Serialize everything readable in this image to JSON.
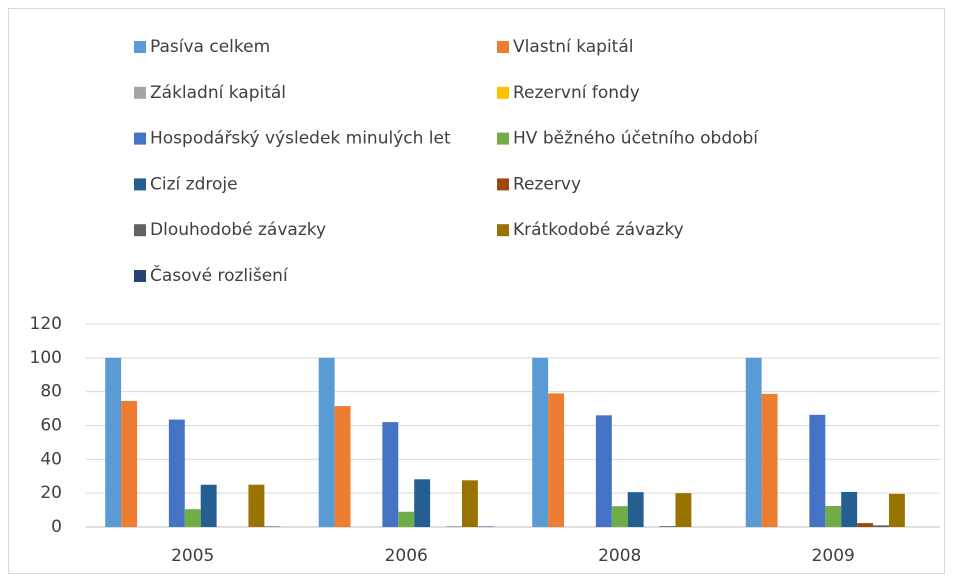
{
  "chart_data": {
    "type": "bar",
    "categories": [
      "2005",
      "2006",
      "2008",
      "2009"
    ],
    "series": [
      {
        "name": "Pasíva celkem",
        "color": "#5b9bd5",
        "values": [
          100,
          100,
          100,
          100
        ]
      },
      {
        "name": "Vlastní kapitál",
        "color": "#ed7d31",
        "values": [
          74.5,
          71.5,
          79,
          78.7
        ]
      },
      {
        "name": "Základní kapitál",
        "color": "#a5a5a5",
        "values": [
          0,
          0,
          0,
          0
        ]
      },
      {
        "name": "Rezervní fondy",
        "color": "#ffc000",
        "values": [
          0,
          0,
          0,
          0
        ]
      },
      {
        "name": "Hospodářský výsledek minulých let",
        "color": "#4472c4",
        "values": [
          63.5,
          62,
          66,
          66.3
        ]
      },
      {
        "name": "HV běžného účetního období",
        "color": "#70ad47",
        "values": [
          10.5,
          9,
          12.3,
          12.4
        ]
      },
      {
        "name": "Cizí zdroje",
        "color": "#255e91",
        "values": [
          25,
          28.2,
          20.6,
          20.7
        ]
      },
      {
        "name": "Rezervy",
        "color": "#9e480e",
        "values": [
          0,
          0,
          0,
          2.3
        ]
      },
      {
        "name": "Dlouhodobé závazky",
        "color": "#636363",
        "values": [
          0,
          0.3,
          0.5,
          1
        ]
      },
      {
        "name": "Krátkodobé závazky",
        "color": "#997300",
        "values": [
          25,
          27.6,
          20,
          19.6
        ]
      },
      {
        "name": "Časové rozlišení",
        "color": "#264478",
        "values": [
          0.3,
          0.3,
          0,
          0
        ]
      }
    ],
    "ylim": [
      0,
      120
    ],
    "yticks": [
      0,
      20,
      40,
      60,
      80,
      100,
      120
    ],
    "grid": true,
    "legend": "top"
  }
}
